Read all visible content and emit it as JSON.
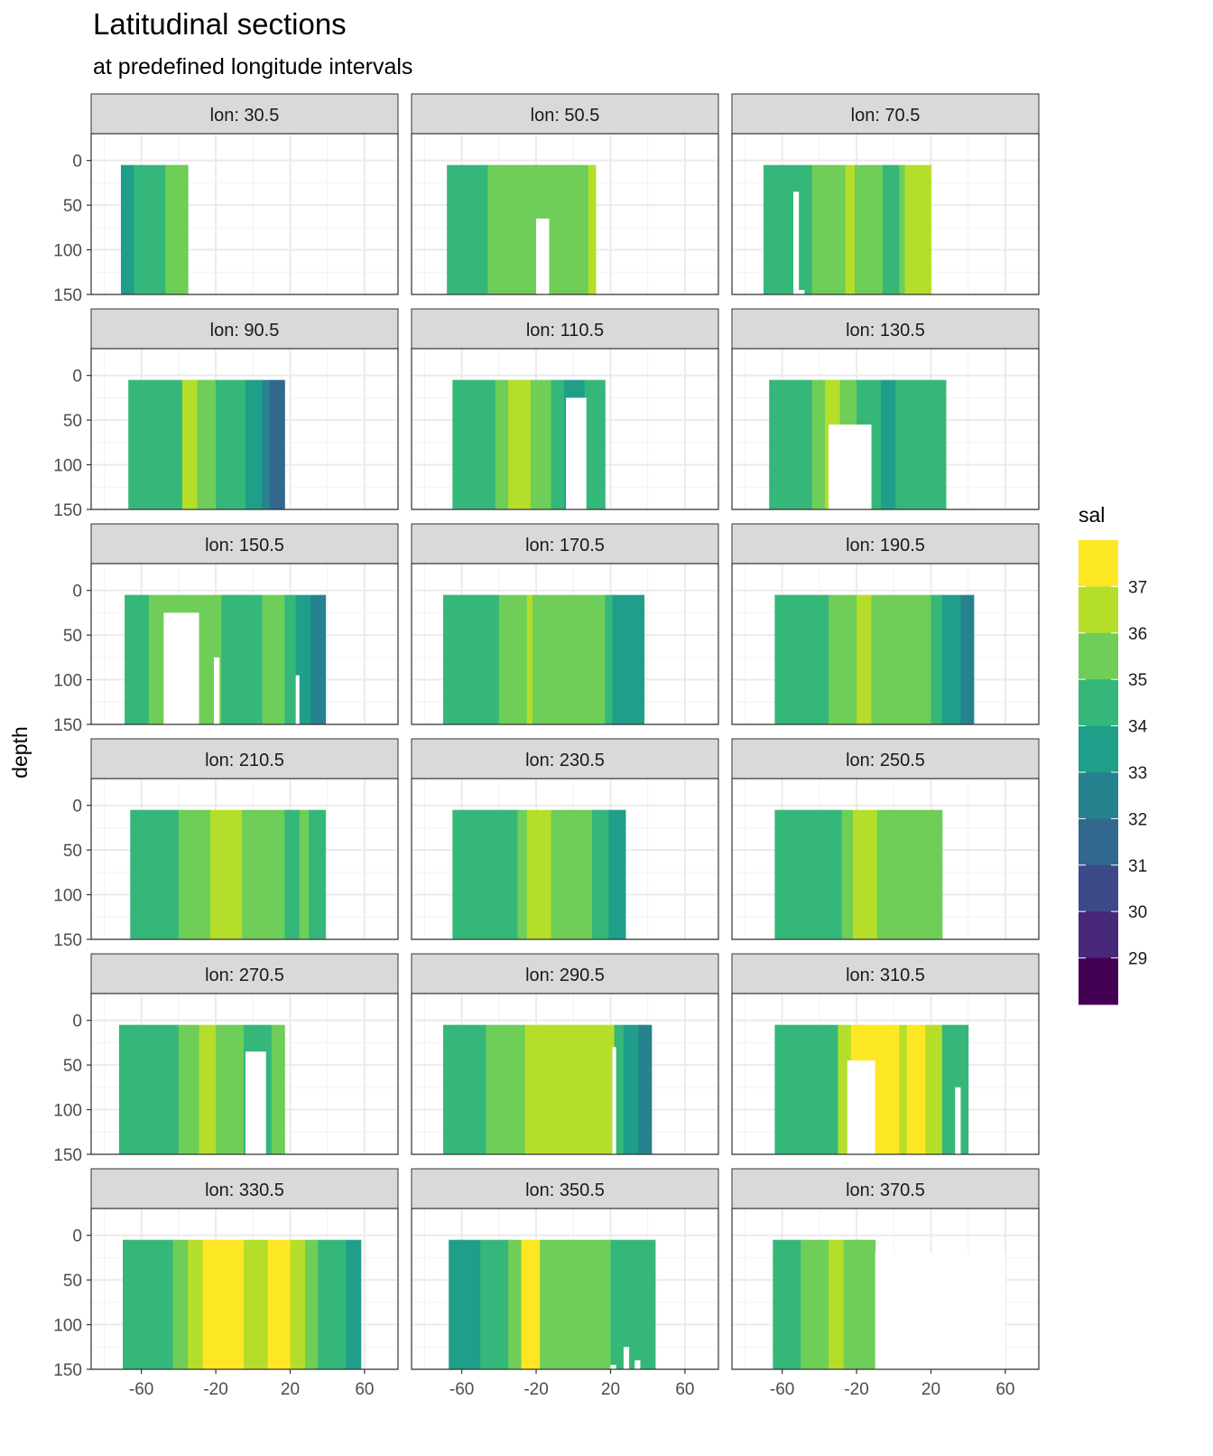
{
  "chart_data": {
    "type": "heatmap",
    "title": "Latitudinal sections",
    "subtitle": "at predefined longitude intervals",
    "ylabel": "depth",
    "xlabel": "",
    "facet_var": "lon",
    "facet_label_prefix": "lon: ",
    "x_ticks": [
      -60,
      -20,
      20,
      60
    ],
    "x_range": [
      -87,
      78
    ],
    "y_ticks": [
      0,
      50,
      100,
      150
    ],
    "y_range": [
      -30,
      150
    ],
    "y_reversed": true,
    "legend": {
      "title": "sal",
      "position": "right",
      "breaks": [
        37,
        36,
        35,
        34,
        33,
        32,
        31,
        30,
        29
      ],
      "colors": [
        "#FDE725",
        "#B5DE2B",
        "#6ECE58",
        "#35B779",
        "#1F9E89",
        "#26828E",
        "#31688E",
        "#3E4989",
        "#482878",
        "#440154"
      ]
    },
    "panels": [
      {
        "lon": "30.5",
        "bands": [
          {
            "from": -71,
            "to": -64,
            "value": 33.5
          },
          {
            "from": -64,
            "to": -47,
            "value": 34.5
          },
          {
            "from": -47,
            "to": -35,
            "value": 35.5
          }
        ],
        "gaps": []
      },
      {
        "lon": "50.5",
        "bands": [
          {
            "from": -68,
            "to": -46,
            "value": 34.5
          },
          {
            "from": -46,
            "to": 8,
            "value": 35.5
          },
          {
            "from": 8,
            "to": 12,
            "value": 36.5
          }
        ],
        "gaps": [
          {
            "from": -20,
            "to": -13,
            "top": 65
          }
        ]
      },
      {
        "lon": "70.5",
        "bands": [
          {
            "from": -70,
            "to": -44,
            "value": 34.5
          },
          {
            "from": -44,
            "to": -26,
            "value": 35.5
          },
          {
            "from": -26,
            "to": -21,
            "value": 36.5
          },
          {
            "from": -21,
            "to": -6,
            "value": 35.5
          },
          {
            "from": -6,
            "to": 3,
            "value": 34.5
          },
          {
            "from": 3,
            "to": 6,
            "value": 35.5
          },
          {
            "from": 6,
            "to": 20,
            "value": 36.5
          }
        ],
        "gaps": [
          {
            "from": -54,
            "to": -51,
            "top": 35
          },
          {
            "from": -51,
            "to": -48,
            "top": 145
          }
        ]
      },
      {
        "lon": "90.5",
        "bands": [
          {
            "from": -67,
            "to": -38,
            "value": 34.5
          },
          {
            "from": -38,
            "to": -30,
            "value": 36.5
          },
          {
            "from": -30,
            "to": -20,
            "value": 35.5
          },
          {
            "from": -20,
            "to": -4,
            "value": 34.5
          },
          {
            "from": -4,
            "to": 5,
            "value": 33.5
          },
          {
            "from": 5,
            "to": 9,
            "value": 32.5
          },
          {
            "from": 9,
            "to": 17,
            "value": 31.5
          }
        ],
        "gaps": []
      },
      {
        "lon": "110.5",
        "bands": [
          {
            "from": -65,
            "to": -42,
            "value": 34.5
          },
          {
            "from": -42,
            "to": -35,
            "value": 35.5
          },
          {
            "from": -35,
            "to": -23,
            "value": 36.5
          },
          {
            "from": -23,
            "to": -12,
            "value": 35.5
          },
          {
            "from": -12,
            "to": -5,
            "value": 34.5
          },
          {
            "from": -5,
            "to": 6,
            "value": 33.5
          },
          {
            "from": 6,
            "to": 17,
            "value": 34.5
          }
        ],
        "gaps": [
          {
            "from": -4,
            "to": 7,
            "top": 25
          }
        ]
      },
      {
        "lon": "130.5",
        "bands": [
          {
            "from": -67,
            "to": -44,
            "value": 34.5
          },
          {
            "from": -44,
            "to": -37,
            "value": 35.5
          },
          {
            "from": -37,
            "to": -29,
            "value": 36.5
          },
          {
            "from": -29,
            "to": -20,
            "value": 35.5
          },
          {
            "from": -20,
            "to": -7,
            "value": 34.5
          },
          {
            "from": -7,
            "to": 1,
            "value": 33.5
          },
          {
            "from": 1,
            "to": 28,
            "value": 34.5
          }
        ],
        "gaps": [
          {
            "from": -35,
            "to": -12,
            "top": 55
          }
        ]
      },
      {
        "lon": "150.5",
        "bands": [
          {
            "from": -69,
            "to": -56,
            "value": 34.5
          },
          {
            "from": -56,
            "to": -17,
            "value": 35.5
          },
          {
            "from": -17,
            "to": 5,
            "value": 34.5
          },
          {
            "from": 5,
            "to": 17,
            "value": 35.5
          },
          {
            "from": 17,
            "to": 23,
            "value": 34.5
          },
          {
            "from": 23,
            "to": 31,
            "value": 33.5
          },
          {
            "from": 31,
            "to": 39,
            "value": 32.5
          }
        ],
        "gaps": [
          {
            "from": -48,
            "to": -29,
            "top": 25
          },
          {
            "from": -21,
            "to": -18,
            "top": 75
          },
          {
            "from": 23,
            "to": 25,
            "top": 95
          }
        ]
      },
      {
        "lon": "170.5",
        "bands": [
          {
            "from": -70,
            "to": -40,
            "value": 34.5
          },
          {
            "from": -40,
            "to": -25,
            "value": 35.5
          },
          {
            "from": -25,
            "to": -22,
            "value": 36.5
          },
          {
            "from": -22,
            "to": 17,
            "value": 35.5
          },
          {
            "from": 17,
            "to": 21,
            "value": 34.5
          },
          {
            "from": 21,
            "to": 38,
            "value": 33.5
          }
        ],
        "gaps": []
      },
      {
        "lon": "190.5",
        "bands": [
          {
            "from": -64,
            "to": -35,
            "value": 34.5
          },
          {
            "from": -35,
            "to": -20,
            "value": 35.5
          },
          {
            "from": -20,
            "to": -12,
            "value": 36.5
          },
          {
            "from": -12,
            "to": 20,
            "value": 35.5
          },
          {
            "from": 20,
            "to": 26,
            "value": 34.5
          },
          {
            "from": 26,
            "to": 36,
            "value": 33.5
          },
          {
            "from": 36,
            "to": 43,
            "value": 32.5
          }
        ],
        "gaps": []
      },
      {
        "lon": "210.5",
        "bands": [
          {
            "from": -66,
            "to": -40,
            "value": 34.5
          },
          {
            "from": -40,
            "to": -23,
            "value": 35.5
          },
          {
            "from": -23,
            "to": -6,
            "value": 36.5
          },
          {
            "from": -6,
            "to": 17,
            "value": 35.5
          },
          {
            "from": 17,
            "to": 25,
            "value": 34.5
          },
          {
            "from": 25,
            "to": 30,
            "value": 35.5
          },
          {
            "from": 30,
            "to": 39,
            "value": 34.5
          }
        ],
        "gaps": []
      },
      {
        "lon": "230.5",
        "bands": [
          {
            "from": -65,
            "to": -30,
            "value": 34.5
          },
          {
            "from": -30,
            "to": -25,
            "value": 35.5
          },
          {
            "from": -25,
            "to": -12,
            "value": 36.5
          },
          {
            "from": -12,
            "to": 10,
            "value": 35.5
          },
          {
            "from": 10,
            "to": 19,
            "value": 34.5
          },
          {
            "from": 19,
            "to": 28,
            "value": 33.5
          }
        ],
        "gaps": []
      },
      {
        "lon": "250.5",
        "bands": [
          {
            "from": -64,
            "to": -28,
            "value": 34.5
          },
          {
            "from": -28,
            "to": -22,
            "value": 35.5
          },
          {
            "from": -22,
            "to": -9,
            "value": 36.5
          },
          {
            "from": -9,
            "to": 15,
            "value": 35.5
          },
          {
            "from": 15,
            "to": 26,
            "value": 35.5
          }
        ],
        "gaps": []
      },
      {
        "lon": "270.5",
        "bands": [
          {
            "from": -72,
            "to": -40,
            "value": 34.5
          },
          {
            "from": -40,
            "to": -29,
            "value": 35.5
          },
          {
            "from": -29,
            "to": -20,
            "value": 36.5
          },
          {
            "from": -20,
            "to": -5,
            "value": 35.5
          },
          {
            "from": -5,
            "to": 10,
            "value": 34.5
          },
          {
            "from": 10,
            "to": 17,
            "value": 35.5
          }
        ],
        "gaps": [
          {
            "from": -4,
            "to": 7,
            "top": 35
          }
        ]
      },
      {
        "lon": "290.5",
        "bands": [
          {
            "from": -70,
            "to": -47,
            "value": 34.5
          },
          {
            "from": -47,
            "to": -26,
            "value": 35.5
          },
          {
            "from": -26,
            "to": 22,
            "value": 36.5
          },
          {
            "from": 22,
            "to": 27,
            "value": 34.5
          },
          {
            "from": 27,
            "to": 35,
            "value": 33.5
          },
          {
            "from": 35,
            "to": 42,
            "value": 32.5
          }
        ],
        "gaps": [
          {
            "from": 21,
            "to": 23,
            "top": 30
          }
        ]
      },
      {
        "lon": "310.5",
        "bands": [
          {
            "from": -64,
            "to": -30,
            "value": 34.5
          },
          {
            "from": -30,
            "to": -23,
            "value": 36.5
          },
          {
            "from": -23,
            "to": 3,
            "value": 37.5
          },
          {
            "from": 3,
            "to": 7,
            "value": 36.5
          },
          {
            "from": 7,
            "to": 17,
            "value": 37.5
          },
          {
            "from": 17,
            "to": 26,
            "value": 36.5
          },
          {
            "from": 26,
            "to": 40,
            "value": 34.5
          }
        ],
        "gaps": [
          {
            "from": -25,
            "to": -10,
            "top": 45
          },
          {
            "from": 33,
            "to": 36,
            "top": 75
          }
        ]
      },
      {
        "lon": "330.5",
        "bands": [
          {
            "from": -70,
            "to": -43,
            "value": 34.5
          },
          {
            "from": -43,
            "to": -35,
            "value": 35.5
          },
          {
            "from": -35,
            "to": -27,
            "value": 36.5
          },
          {
            "from": -27,
            "to": -5,
            "value": 37.5
          },
          {
            "from": -5,
            "to": 8,
            "value": 36.5
          },
          {
            "from": 8,
            "to": 20,
            "value": 37.5
          },
          {
            "from": 20,
            "to": 28,
            "value": 36.5
          },
          {
            "from": 28,
            "to": 35,
            "value": 35.5
          },
          {
            "from": 35,
            "to": 50,
            "value": 34.5
          },
          {
            "from": 50,
            "to": 58,
            "value": 33.5
          }
        ],
        "gaps": []
      },
      {
        "lon": "350.5",
        "bands": [
          {
            "from": -67,
            "to": -50,
            "value": 33.5
          },
          {
            "from": -50,
            "to": -35,
            "value": 34.5
          },
          {
            "from": -35,
            "to": -28,
            "value": 35.5
          },
          {
            "from": -28,
            "to": -18,
            "value": 37.5
          },
          {
            "from": -18,
            "to": 15,
            "value": 35.5
          },
          {
            "from": 15,
            "to": 20,
            "value": 35.5
          },
          {
            "from": 20,
            "to": 44,
            "value": 34.5
          }
        ],
        "gaps": [
          {
            "from": 20,
            "to": 23,
            "top": 145
          },
          {
            "from": 27,
            "to": 30,
            "top": 125
          },
          {
            "from": 33,
            "to": 36,
            "top": 140
          }
        ]
      },
      {
        "lon": "370.5",
        "bands": [
          {
            "from": -65,
            "to": -50,
            "value": 34.5
          },
          {
            "from": -50,
            "to": -35,
            "value": 35.5
          },
          {
            "from": -35,
            "to": -27,
            "value": 36.5
          },
          {
            "from": -27,
            "to": -20,
            "value": 35.5
          },
          {
            "from": -20,
            "to": -10,
            "value": 35.5
          }
        ],
        "gaps": [
          {
            "from": -10,
            "to": 60,
            "top": 20
          }
        ]
      }
    ]
  }
}
